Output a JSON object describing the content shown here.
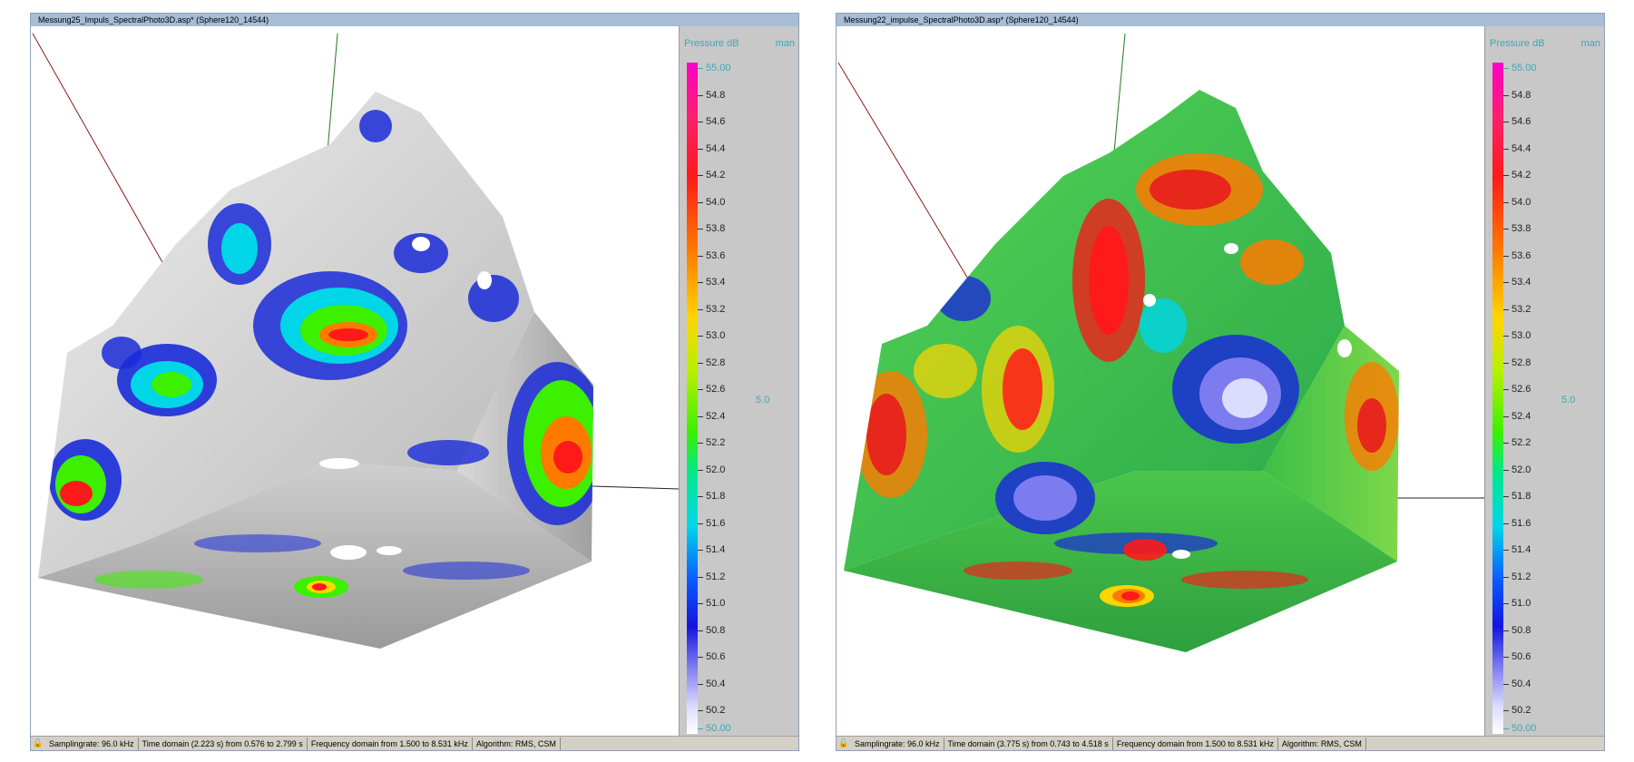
{
  "left": {
    "title": "Messung25_Impuls_SpectralPhoto3D.asp* (Sphere120_14544)",
    "scale": {
      "title": "Pressure dB",
      "mode": "man",
      "range": "5.0",
      "max": "55.00",
      "min": "50.00",
      "ticks": [
        "54.8",
        "54.6",
        "54.4",
        "54.2",
        "54.0",
        "53.8",
        "53.6",
        "53.4",
        "53.2",
        "53.0",
        "52.8",
        "52.6",
        "52.4",
        "52.2",
        "52.0",
        "51.8",
        "51.6",
        "51.4",
        "51.2",
        "51.0",
        "50.8",
        "50.6",
        "50.4",
        "50.2"
      ]
    },
    "status": {
      "samplingrate": "Samplingrate: 96.0 kHz",
      "time_domain": "Time domain (2.223 s) from 0.576 to 2.799 s",
      "frequency_domain": "Frequency domain from 1.500 to 8.531 kHz",
      "algorithm": "Algorithm: RMS, CSM"
    },
    "colors": {
      "base": "#c9c9c9",
      "accent": "#1a2bd8"
    }
  },
  "right": {
    "title": "Messung22_impulse_SpectralPhoto3D.asp* (Sphere120_14544)",
    "scale": {
      "title": "Pressure dB",
      "mode": "man",
      "range": "5.0",
      "max": "55.00",
      "min": "50.00",
      "ticks": [
        "54.8",
        "54.6",
        "54.4",
        "54.2",
        "54.0",
        "53.8",
        "53.6",
        "53.4",
        "53.2",
        "53.0",
        "52.8",
        "52.6",
        "52.4",
        "52.2",
        "52.0",
        "51.8",
        "51.6",
        "51.4",
        "51.2",
        "51.0",
        "50.8",
        "50.6",
        "50.4",
        "50.2"
      ]
    },
    "status": {
      "samplingrate": "Samplingrate: 96.0 kHz",
      "time_domain": "Time domain (3.775 s) from 0.743 to 4.518 s",
      "frequency_domain": "Frequency domain from 1.500 to 8.531 kHz",
      "algorithm": "Algorithm: RMS, CSM"
    },
    "colors": {
      "base": "#3cc64a",
      "accent": "#e8271c"
    }
  }
}
